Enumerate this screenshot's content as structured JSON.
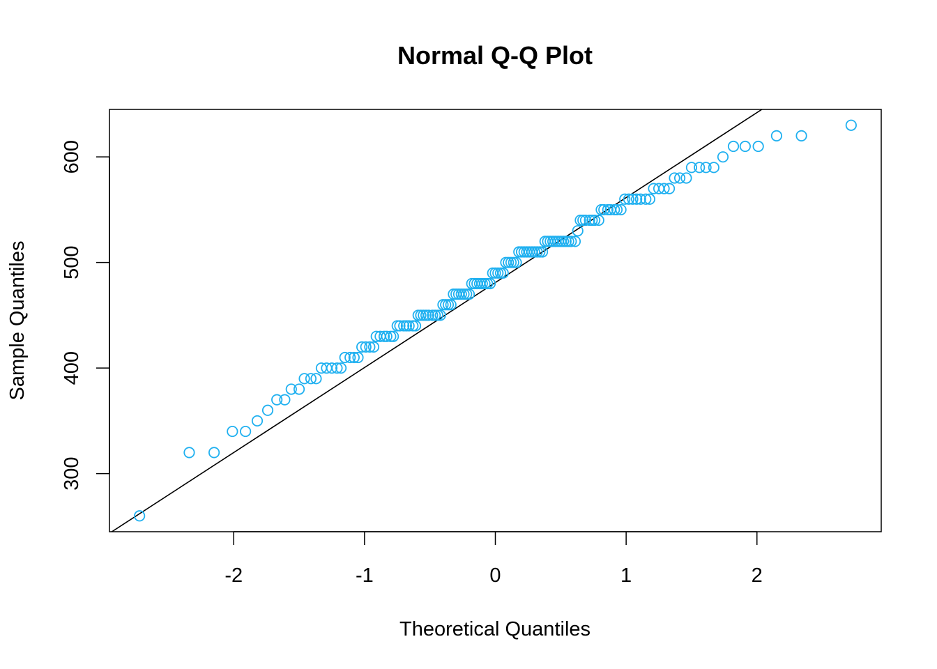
{
  "chart_data": {
    "type": "scatter",
    "title": "Normal Q-Q Plot",
    "xlabel": "Theoretical Quantiles",
    "ylabel": "Sample Quantiles",
    "xlim": [
      -2.95,
      2.95
    ],
    "ylim": [
      245,
      645
    ],
    "x_ticks": [
      -2,
      -1,
      0,
      1,
      2
    ],
    "x_tick_labels": [
      "-2",
      "-1",
      "0",
      "1",
      "2"
    ],
    "y_ticks": [
      300,
      400,
      500,
      600
    ],
    "y_tick_labels": [
      "300",
      "400",
      "500",
      "600"
    ],
    "grid": false,
    "legend": "none",
    "point_color": "#1fb0f0",
    "line_color": "#000000",
    "reference_line": {
      "slope": 80.5,
      "intercept": 481
    },
    "points": [
      [
        -2.72,
        260
      ],
      [
        -2.34,
        320
      ],
      [
        -2.15,
        320
      ],
      [
        -2.01,
        340
      ],
      [
        -1.91,
        340
      ],
      [
        -1.82,
        350
      ],
      [
        -1.74,
        360
      ],
      [
        -1.67,
        370
      ],
      [
        -1.61,
        370
      ],
      [
        -1.56,
        380
      ],
      [
        -1.5,
        380
      ],
      [
        -1.46,
        390
      ],
      [
        -1.41,
        390
      ],
      [
        -1.37,
        390
      ],
      [
        -1.33,
        400
      ],
      [
        -1.29,
        400
      ],
      [
        -1.25,
        400
      ],
      [
        -1.21,
        400
      ],
      [
        -1.18,
        400
      ],
      [
        -1.15,
        410
      ],
      [
        -1.11,
        410
      ],
      [
        -1.08,
        410
      ],
      [
        -1.05,
        410
      ],
      [
        -1.02,
        420
      ],
      [
        -0.99,
        420
      ],
      [
        -0.96,
        420
      ],
      [
        -0.93,
        420
      ],
      [
        -0.91,
        430
      ],
      [
        -0.88,
        430
      ],
      [
        -0.85,
        430
      ],
      [
        -0.83,
        430
      ],
      [
        -0.8,
        430
      ],
      [
        -0.78,
        430
      ],
      [
        -0.75,
        440
      ],
      [
        -0.73,
        440
      ],
      [
        -0.7,
        440
      ],
      [
        -0.68,
        440
      ],
      [
        -0.66,
        440
      ],
      [
        -0.63,
        440
      ],
      [
        -0.61,
        440
      ],
      [
        -0.59,
        450
      ],
      [
        -0.57,
        450
      ],
      [
        -0.55,
        450
      ],
      [
        -0.53,
        450
      ],
      [
        -0.51,
        450
      ],
      [
        -0.48,
        450
      ],
      [
        -0.46,
        450
      ],
      [
        -0.44,
        450
      ],
      [
        -0.42,
        450
      ],
      [
        -0.4,
        460
      ],
      [
        -0.38,
        460
      ],
      [
        -0.36,
        460
      ],
      [
        -0.34,
        460
      ],
      [
        -0.32,
        470
      ],
      [
        -0.3,
        470
      ],
      [
        -0.28,
        470
      ],
      [
        -0.26,
        470
      ],
      [
        -0.24,
        470
      ],
      [
        -0.22,
        470
      ],
      [
        -0.2,
        470
      ],
      [
        -0.18,
        480
      ],
      [
        -0.16,
        480
      ],
      [
        -0.14,
        480
      ],
      [
        -0.12,
        480
      ],
      [
        -0.1,
        480
      ],
      [
        -0.08,
        480
      ],
      [
        -0.06,
        480
      ],
      [
        -0.04,
        480
      ],
      [
        -0.02,
        490
      ],
      [
        0.0,
        490
      ],
      [
        0.02,
        490
      ],
      [
        0.04,
        490
      ],
      [
        0.06,
        490
      ],
      [
        0.08,
        500
      ],
      [
        0.1,
        500
      ],
      [
        0.12,
        500
      ],
      [
        0.14,
        500
      ],
      [
        0.16,
        500
      ],
      [
        0.18,
        510
      ],
      [
        0.2,
        510
      ],
      [
        0.22,
        510
      ],
      [
        0.24,
        510
      ],
      [
        0.26,
        510
      ],
      [
        0.28,
        510
      ],
      [
        0.3,
        510
      ],
      [
        0.32,
        510
      ],
      [
        0.34,
        510
      ],
      [
        0.36,
        510
      ],
      [
        0.38,
        520
      ],
      [
        0.4,
        520
      ],
      [
        0.42,
        520
      ],
      [
        0.44,
        520
      ],
      [
        0.46,
        520
      ],
      [
        0.48,
        520
      ],
      [
        0.5,
        520
      ],
      [
        0.52,
        520
      ],
      [
        0.54,
        520
      ],
      [
        0.56,
        520
      ],
      [
        0.58,
        520
      ],
      [
        0.61,
        520
      ],
      [
        0.63,
        530
      ],
      [
        0.65,
        540
      ],
      [
        0.67,
        540
      ],
      [
        0.69,
        540
      ],
      [
        0.72,
        540
      ],
      [
        0.74,
        540
      ],
      [
        0.76,
        540
      ],
      [
        0.79,
        540
      ],
      [
        0.81,
        550
      ],
      [
        0.83,
        550
      ],
      [
        0.86,
        550
      ],
      [
        0.88,
        550
      ],
      [
        0.91,
        550
      ],
      [
        0.93,
        550
      ],
      [
        0.96,
        550
      ],
      [
        0.99,
        560
      ],
      [
        1.02,
        560
      ],
      [
        1.05,
        560
      ],
      [
        1.08,
        560
      ],
      [
        1.11,
        560
      ],
      [
        1.15,
        560
      ],
      [
        1.18,
        560
      ],
      [
        1.21,
        570
      ],
      [
        1.25,
        570
      ],
      [
        1.29,
        570
      ],
      [
        1.33,
        570
      ],
      [
        1.37,
        580
      ],
      [
        1.41,
        580
      ],
      [
        1.46,
        580
      ],
      [
        1.5,
        590
      ],
      [
        1.56,
        590
      ],
      [
        1.61,
        590
      ],
      [
        1.67,
        590
      ],
      [
        1.74,
        600
      ],
      [
        1.82,
        610
      ],
      [
        1.91,
        610
      ],
      [
        2.01,
        610
      ],
      [
        2.15,
        620
      ],
      [
        2.34,
        620
      ],
      [
        2.72,
        630
      ]
    ]
  }
}
